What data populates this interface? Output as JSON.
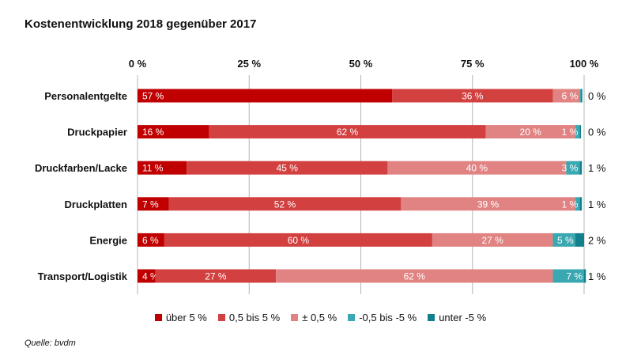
{
  "chart_data": {
    "type": "bar",
    "orientation": "horizontal",
    "stacked": true,
    "title": "Kostenentwicklung 2018 gegenüber 2017",
    "source": "Quelle: bvdm",
    "x_ticks": [
      "0 %",
      "25 %",
      "50 %",
      "75 %",
      "100 %"
    ],
    "xlim": [
      0,
      100
    ],
    "legend_position": "bottom",
    "categories": [
      "Personalentgelte",
      "Druckpapier",
      "Druckfarben/Lacke",
      "Druckplatten",
      "Energie",
      "Transport/Logistik"
    ],
    "right_labels": [
      "0 %",
      "0 %",
      "1 %",
      "1 %",
      "2 %",
      "1 %"
    ],
    "series": [
      {
        "name": "über 5 %",
        "color": "#c00000",
        "values": [
          57,
          16,
          11,
          7,
          6,
          4
        ],
        "labels": [
          "57 %",
          "16 %",
          "11 %",
          "7 %",
          "6 %",
          "4 %"
        ]
      },
      {
        "name": "0,5 bis 5 %",
        "color": "#d2403f",
        "values": [
          36,
          62,
          45,
          52,
          60,
          27
        ],
        "labels": [
          "36 %",
          "62 %",
          "45 %",
          "52 %",
          "60 %",
          "27 %"
        ]
      },
      {
        "name": "± 0,5 %",
        "color": "#e08382",
        "values": [
          6,
          20,
          40,
          39,
          27,
          62
        ],
        "labels": [
          "6 %",
          "20 %",
          "40 %",
          "39 %",
          "27 %",
          "62 %"
        ]
      },
      {
        "name": "-0,5 bis -5 %",
        "color": "#3aa8b0",
        "values": [
          0.3,
          1,
          3,
          1,
          5,
          7
        ],
        "labels": [
          "",
          "1 %",
          "3 %",
          "1 %",
          "5 %",
          "7 %"
        ]
      },
      {
        "name": "unter -5 %",
        "color": "#117f8c",
        "values": [
          0.3,
          0.3,
          0.5,
          0.5,
          2,
          0.4
        ],
        "labels": [
          "",
          "",
          "",
          "",
          "",
          ""
        ]
      }
    ]
  }
}
